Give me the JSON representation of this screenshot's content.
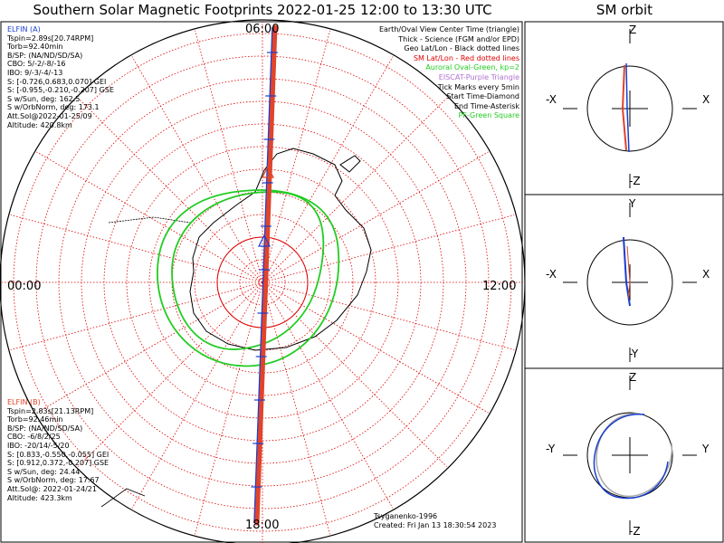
{
  "title": "Southern Solar Magnetic Footprints 2022-01-25 12:00 to 13:30 UTC",
  "orbit_title": "SM orbit",
  "map": {
    "hour_labels": {
      "top": "06:00",
      "bottom": "18:00",
      "left": "00:00",
      "right": "12:00"
    },
    "elfin_a": {
      "name": "ELFIN (A)",
      "color": "#1a3ecf",
      "lines": [
        "Tspin=2.89s[20.74RPM]",
        "Torb=92.40min",
        "B/SP: (NA/ND/SD/SA)",
        "CBO: 5/-2/-8/-16",
        "IBO: 9/-3/-4/-13",
        "S: [-0.726,0.683,0.070] GEI",
        "S: [-0.955,-0.210,-0.207] GSE",
        "S w/Sun, deg: 162.5",
        "S w/OrbNorm, deg: 173.1",
        "Att.Sol@2022-01-25/09",
        "Altitude: 420.8km"
      ]
    },
    "elfin_b": {
      "name": "ELFIN (B)",
      "color": "#e0442a",
      "lines": [
        "Tspin=2.83s[21.13RPM]",
        "Torb=92.46min",
        "B/SP: (NA/ND/SD/SA)",
        "CBO: -6/8/2/25",
        "IBO: -20/14/-5/20",
        "S: [0.833,-0.550,-0.055] GEI",
        "S: [0.912,0.372,-0.207] GSE",
        "S w/Sun, deg: 24.44",
        "S w/OrbNorm, deg: 17.67",
        "Att.Sol@: 2022-01-24/21",
        "Altitude: 423.3km"
      ]
    },
    "legend": [
      {
        "text": "Earth/Oval View Center Time (triangle)",
        "color": "#000000"
      },
      {
        "text": "Thick - Science (FGM and/or EPD)",
        "color": "#000000"
      },
      {
        "text": "Geo Lat/Lon - Black dotted lines",
        "color": "#000000"
      },
      {
        "text": "SM Lat/Lon - Red dotted lines",
        "color": "#e00000"
      },
      {
        "text": "Auroral Oval-Green, kp=2",
        "color": "#22cc22"
      },
      {
        "text": "EISCAT-Purple Triangle",
        "color": "#b070d0"
      },
      {
        "text": "Tick Marks every 5min",
        "color": "#000000"
      },
      {
        "text": "Start Time-Diamond",
        "color": "#000000"
      },
      {
        "text": "End Time-Asterisk",
        "color": "#000000"
      },
      {
        "text": "PF-Green Square",
        "color": "#22cc22"
      }
    ],
    "credit_author": "Tsyganenko-1996",
    "credit_created": "Created: Fri Jan 13 18:30:54 2023",
    "colors": {
      "sm_grid": "#e00000",
      "oval": "#22cc22",
      "coast": "#000000"
    }
  },
  "orbit_panels": [
    {
      "top": "Z",
      "bottom": "-Z",
      "left": "-X",
      "right": "X"
    },
    {
      "top": "Y",
      "bottom": "-Y",
      "left": "-X",
      "right": "X"
    },
    {
      "top": "Z",
      "bottom": "-Z",
      "left": "-Y",
      "right": "Y"
    }
  ]
}
